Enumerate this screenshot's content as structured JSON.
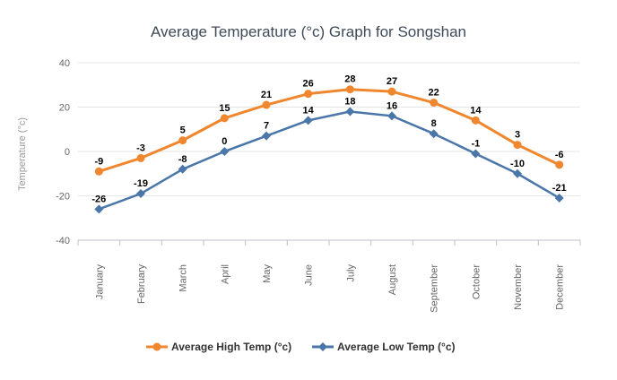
{
  "chart_data": {
    "type": "line",
    "title": "Average Temperature (°c) Graph for Songshan",
    "ylabel": "Temperature (°c)",
    "xlabel": "",
    "categories": [
      "January",
      "February",
      "March",
      "April",
      "May",
      "June",
      "July",
      "August",
      "September",
      "October",
      "November",
      "December"
    ],
    "y_ticks": [
      40,
      20,
      0,
      -20,
      -40
    ],
    "ylim": [
      -40,
      40
    ],
    "grid": true,
    "legend_position": "bottom-center",
    "series": [
      {
        "name": "Average High Temp (°c)",
        "marker": "circle",
        "color": "#f0862d",
        "values": [
          -9,
          -3,
          5,
          15,
          21,
          26,
          28,
          27,
          22,
          14,
          3,
          -6
        ]
      },
      {
        "name": "Average Low Temp (°c)",
        "marker": "diamond",
        "color": "#4a76a8",
        "values": [
          -26,
          -19,
          -8,
          0,
          7,
          14,
          18,
          16,
          8,
          -1,
          -10,
          -21
        ]
      }
    ]
  },
  "colors": {
    "background": "#ffffff",
    "gridline": "#e6e6e6",
    "axis_line": "#c0c0c8",
    "title_text": "#3e4a57",
    "tick_text": "#666666",
    "y_title_text": "#999999",
    "data_label_text": "#000000",
    "legend_text": "#333333",
    "series_high": "#f0862d",
    "series_low": "#4a76a8"
  }
}
